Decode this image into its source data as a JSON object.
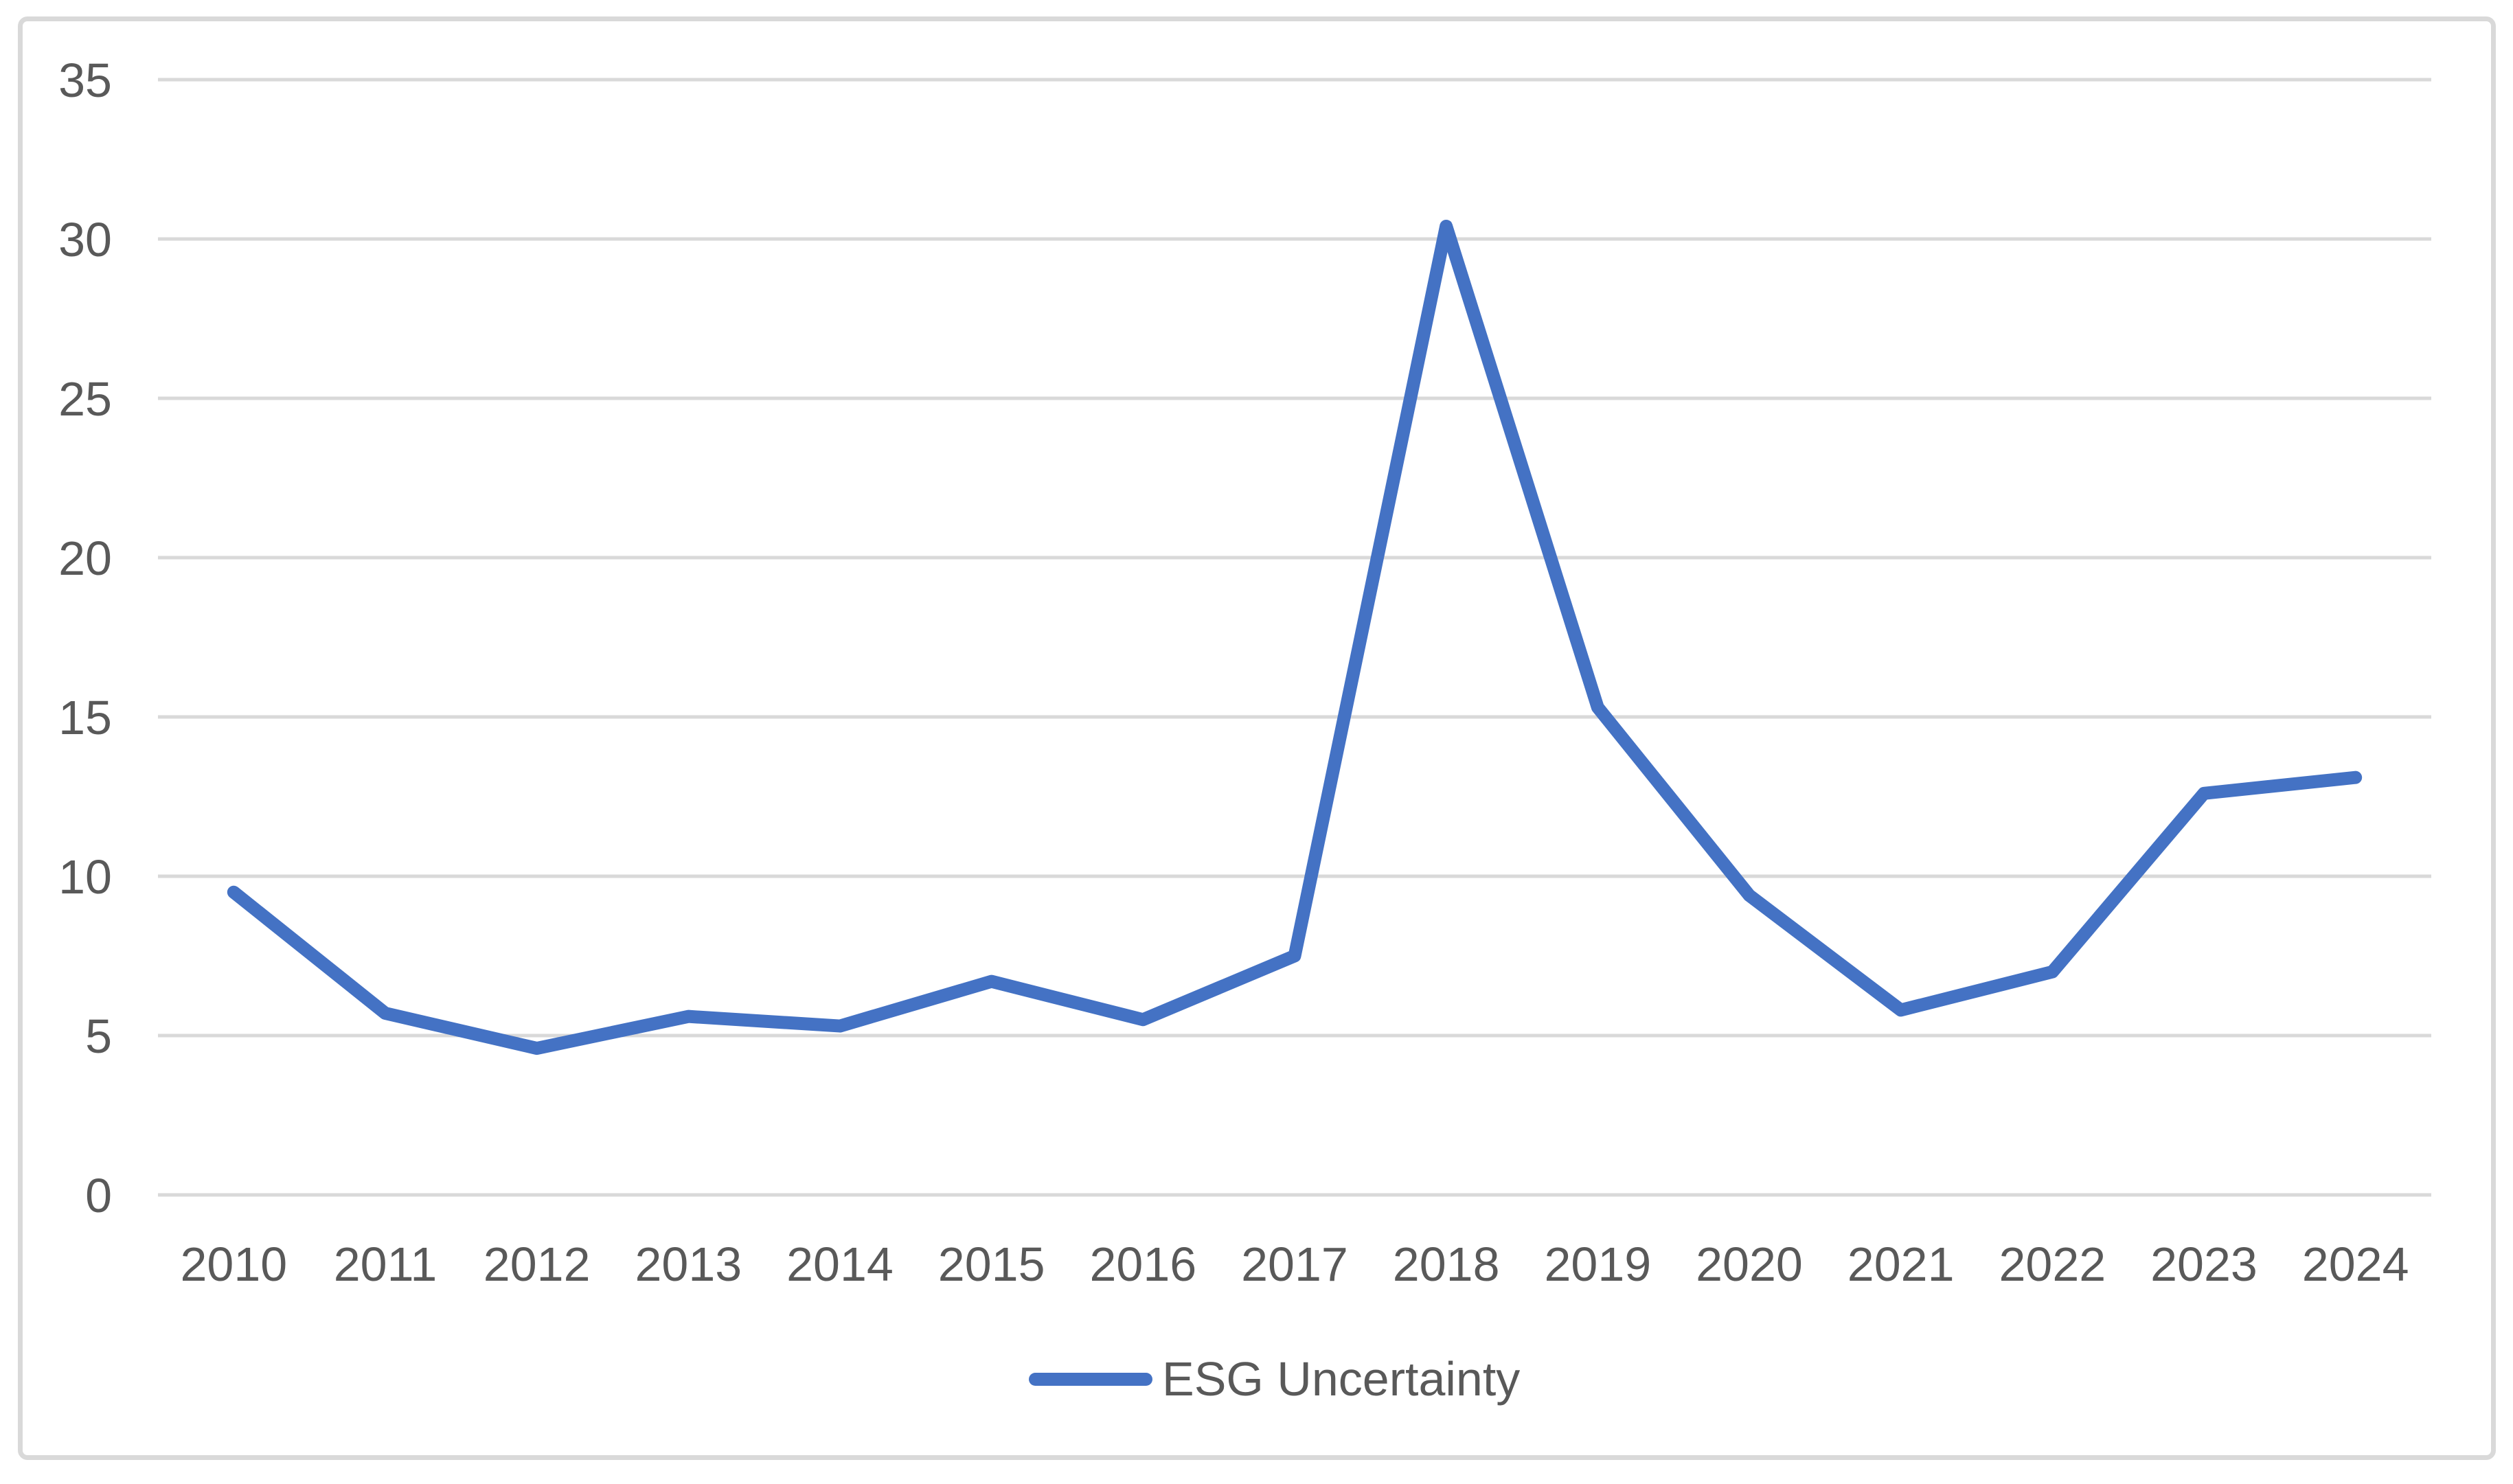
{
  "chart_data": {
    "type": "line",
    "title": "",
    "categories": [
      "2010",
      "2011",
      "2012",
      "2013",
      "2014",
      "2015",
      "2016",
      "2017",
      "2018",
      "2019",
      "2020",
      "2021",
      "2022",
      "2023",
      "2024"
    ],
    "series": [
      {
        "name": "ESG Uncertainty",
        "color": "#4472C4",
        "values": [
          9.5,
          5.7,
          4.6,
          5.6,
          5.3,
          6.7,
          5.5,
          7.5,
          30.4,
          15.3,
          9.4,
          5.8,
          7.0,
          12.6,
          13.1
        ]
      }
    ],
    "xlabel": "",
    "ylabel": "",
    "ylim": [
      0,
      35
    ],
    "y_ticks": [
      0,
      5,
      10,
      15,
      20,
      25,
      30,
      35
    ],
    "grid": "horizontal-only",
    "legend_position": "bottom-center"
  },
  "colors": {
    "background": "#FFFFFF",
    "border": "#D9D9D9",
    "gridline": "#D9D9D9",
    "axis_label": "#595959",
    "series_line": "#4472C4"
  }
}
